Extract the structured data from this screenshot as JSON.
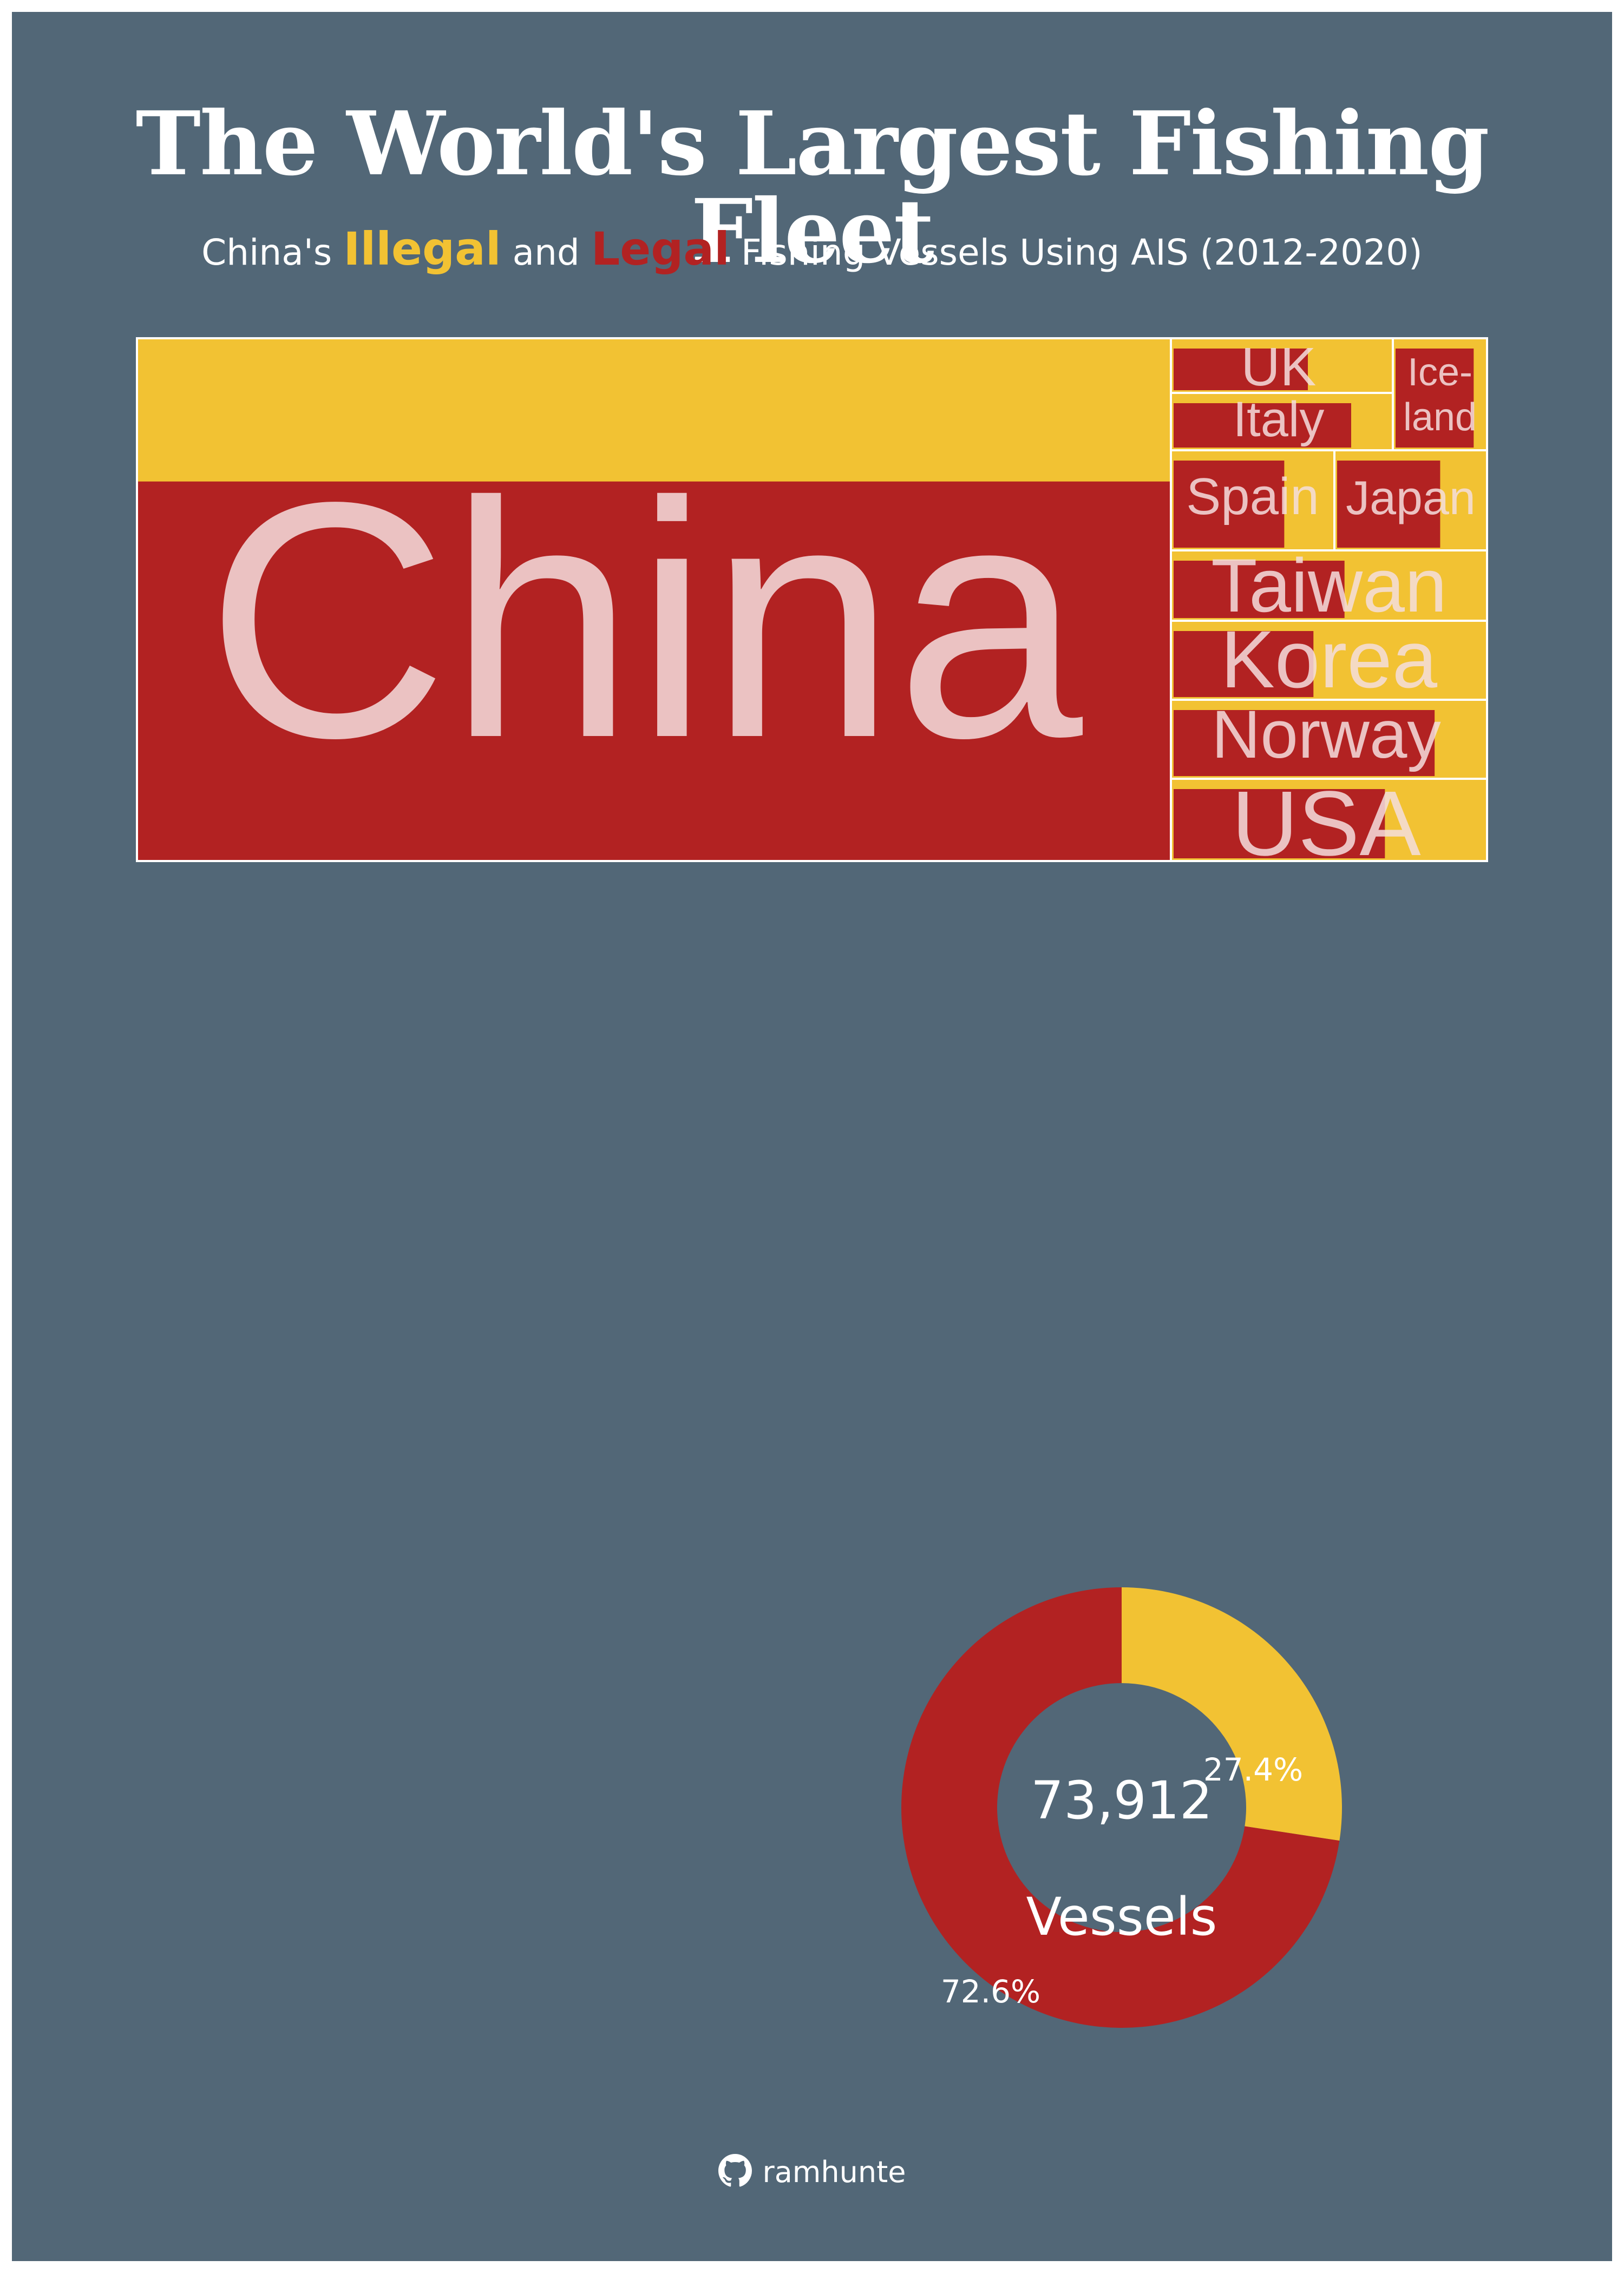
{
  "title": "The World's Largest Fishing Fleet",
  "subtitle": {
    "prefix": "China's",
    "illegal": "Illegal",
    "and": "and",
    "legal": "Legal",
    "suffix": "Fishing Vessels Using AIS (2012-2020)"
  },
  "colors": {
    "background": "#526777",
    "illegal": "#f2c233",
    "legal": "#b22222",
    "label": "#f5dede"
  },
  "chart_data": [
    {
      "type": "treemap",
      "series": [
        {
          "name": "Legal"
        },
        {
          "name": "Illegal"
        }
      ],
      "items": [
        {
          "name": "China",
          "label": "China",
          "legal_share": 0.726
        },
        {
          "name": "UK",
          "label": "UK",
          "legal_share": 0.62
        },
        {
          "name": "Iceland",
          "label": "Ice-\nland",
          "legal_share": 0.88
        },
        {
          "name": "Italy",
          "label": "Italy",
          "legal_share": 0.82
        },
        {
          "name": "Spain",
          "label": "Spain",
          "legal_share": 0.7
        },
        {
          "name": "Japan",
          "label": "Japan",
          "legal_share": 0.7
        },
        {
          "name": "Taiwan",
          "label": "Taiwan",
          "legal_share": 0.55
        },
        {
          "name": "Korea",
          "label": "Korea",
          "legal_share": 0.45
        },
        {
          "name": "Norway",
          "label": "Norway",
          "legal_share": 0.84
        },
        {
          "name": "USA",
          "label": "USA",
          "legal_share": 0.68
        }
      ]
    },
    {
      "type": "pie",
      "slices": [
        {
          "name": "Illegal",
          "value": 27.4,
          "label": "27.4%"
        },
        {
          "name": "Legal",
          "value": 72.6,
          "label": "72.6%"
        }
      ],
      "center_value": "73,912",
      "center_label": "Vessels"
    }
  ],
  "footer": {
    "icon": "github-icon",
    "handle": "ramhunte"
  }
}
